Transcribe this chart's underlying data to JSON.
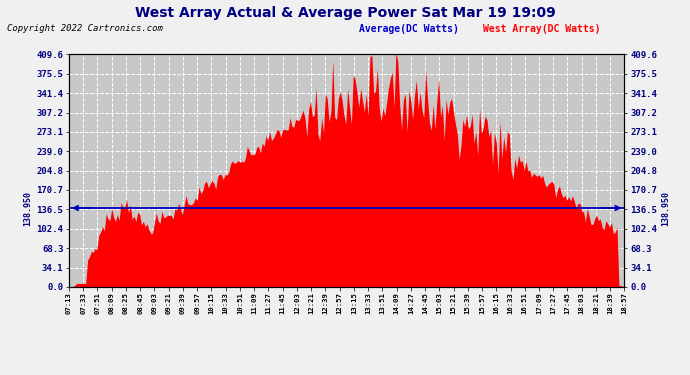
{
  "title": "West Array Actual & Average Power Sat Mar 19 19:09",
  "copyright": "Copyright 2022 Cartronics.com",
  "legend_avg": "Average(DC Watts)",
  "legend_west": "West Array(DC Watts)",
  "avg_value": 138.95,
  "avg_label": "138.950",
  "yticks": [
    0.0,
    34.1,
    68.3,
    102.4,
    136.5,
    170.7,
    204.8,
    239.0,
    273.1,
    307.2,
    341.4,
    375.5,
    409.6
  ],
  "ymax": 409.6,
  "ymin": 0.0,
  "fig_bg": "#f0f0f0",
  "plot_bg": "#c8c8c8",
  "bar_color": "#ff0000",
  "avg_line_color": "#0000bb",
  "grid_color": "#ffffff",
  "title_color": "#000080",
  "xtick_labels": [
    "07:13",
    "07:33",
    "07:51",
    "08:09",
    "08:25",
    "08:45",
    "09:03",
    "09:21",
    "09:39",
    "09:57",
    "10:15",
    "10:33",
    "10:51",
    "11:09",
    "11:27",
    "11:45",
    "12:03",
    "12:21",
    "12:39",
    "12:57",
    "13:15",
    "13:33",
    "13:51",
    "14:09",
    "14:27",
    "14:45",
    "15:03",
    "15:21",
    "15:39",
    "15:57",
    "16:15",
    "16:33",
    "16:51",
    "17:09",
    "17:27",
    "17:45",
    "18:03",
    "18:21",
    "18:39",
    "18:57"
  ]
}
